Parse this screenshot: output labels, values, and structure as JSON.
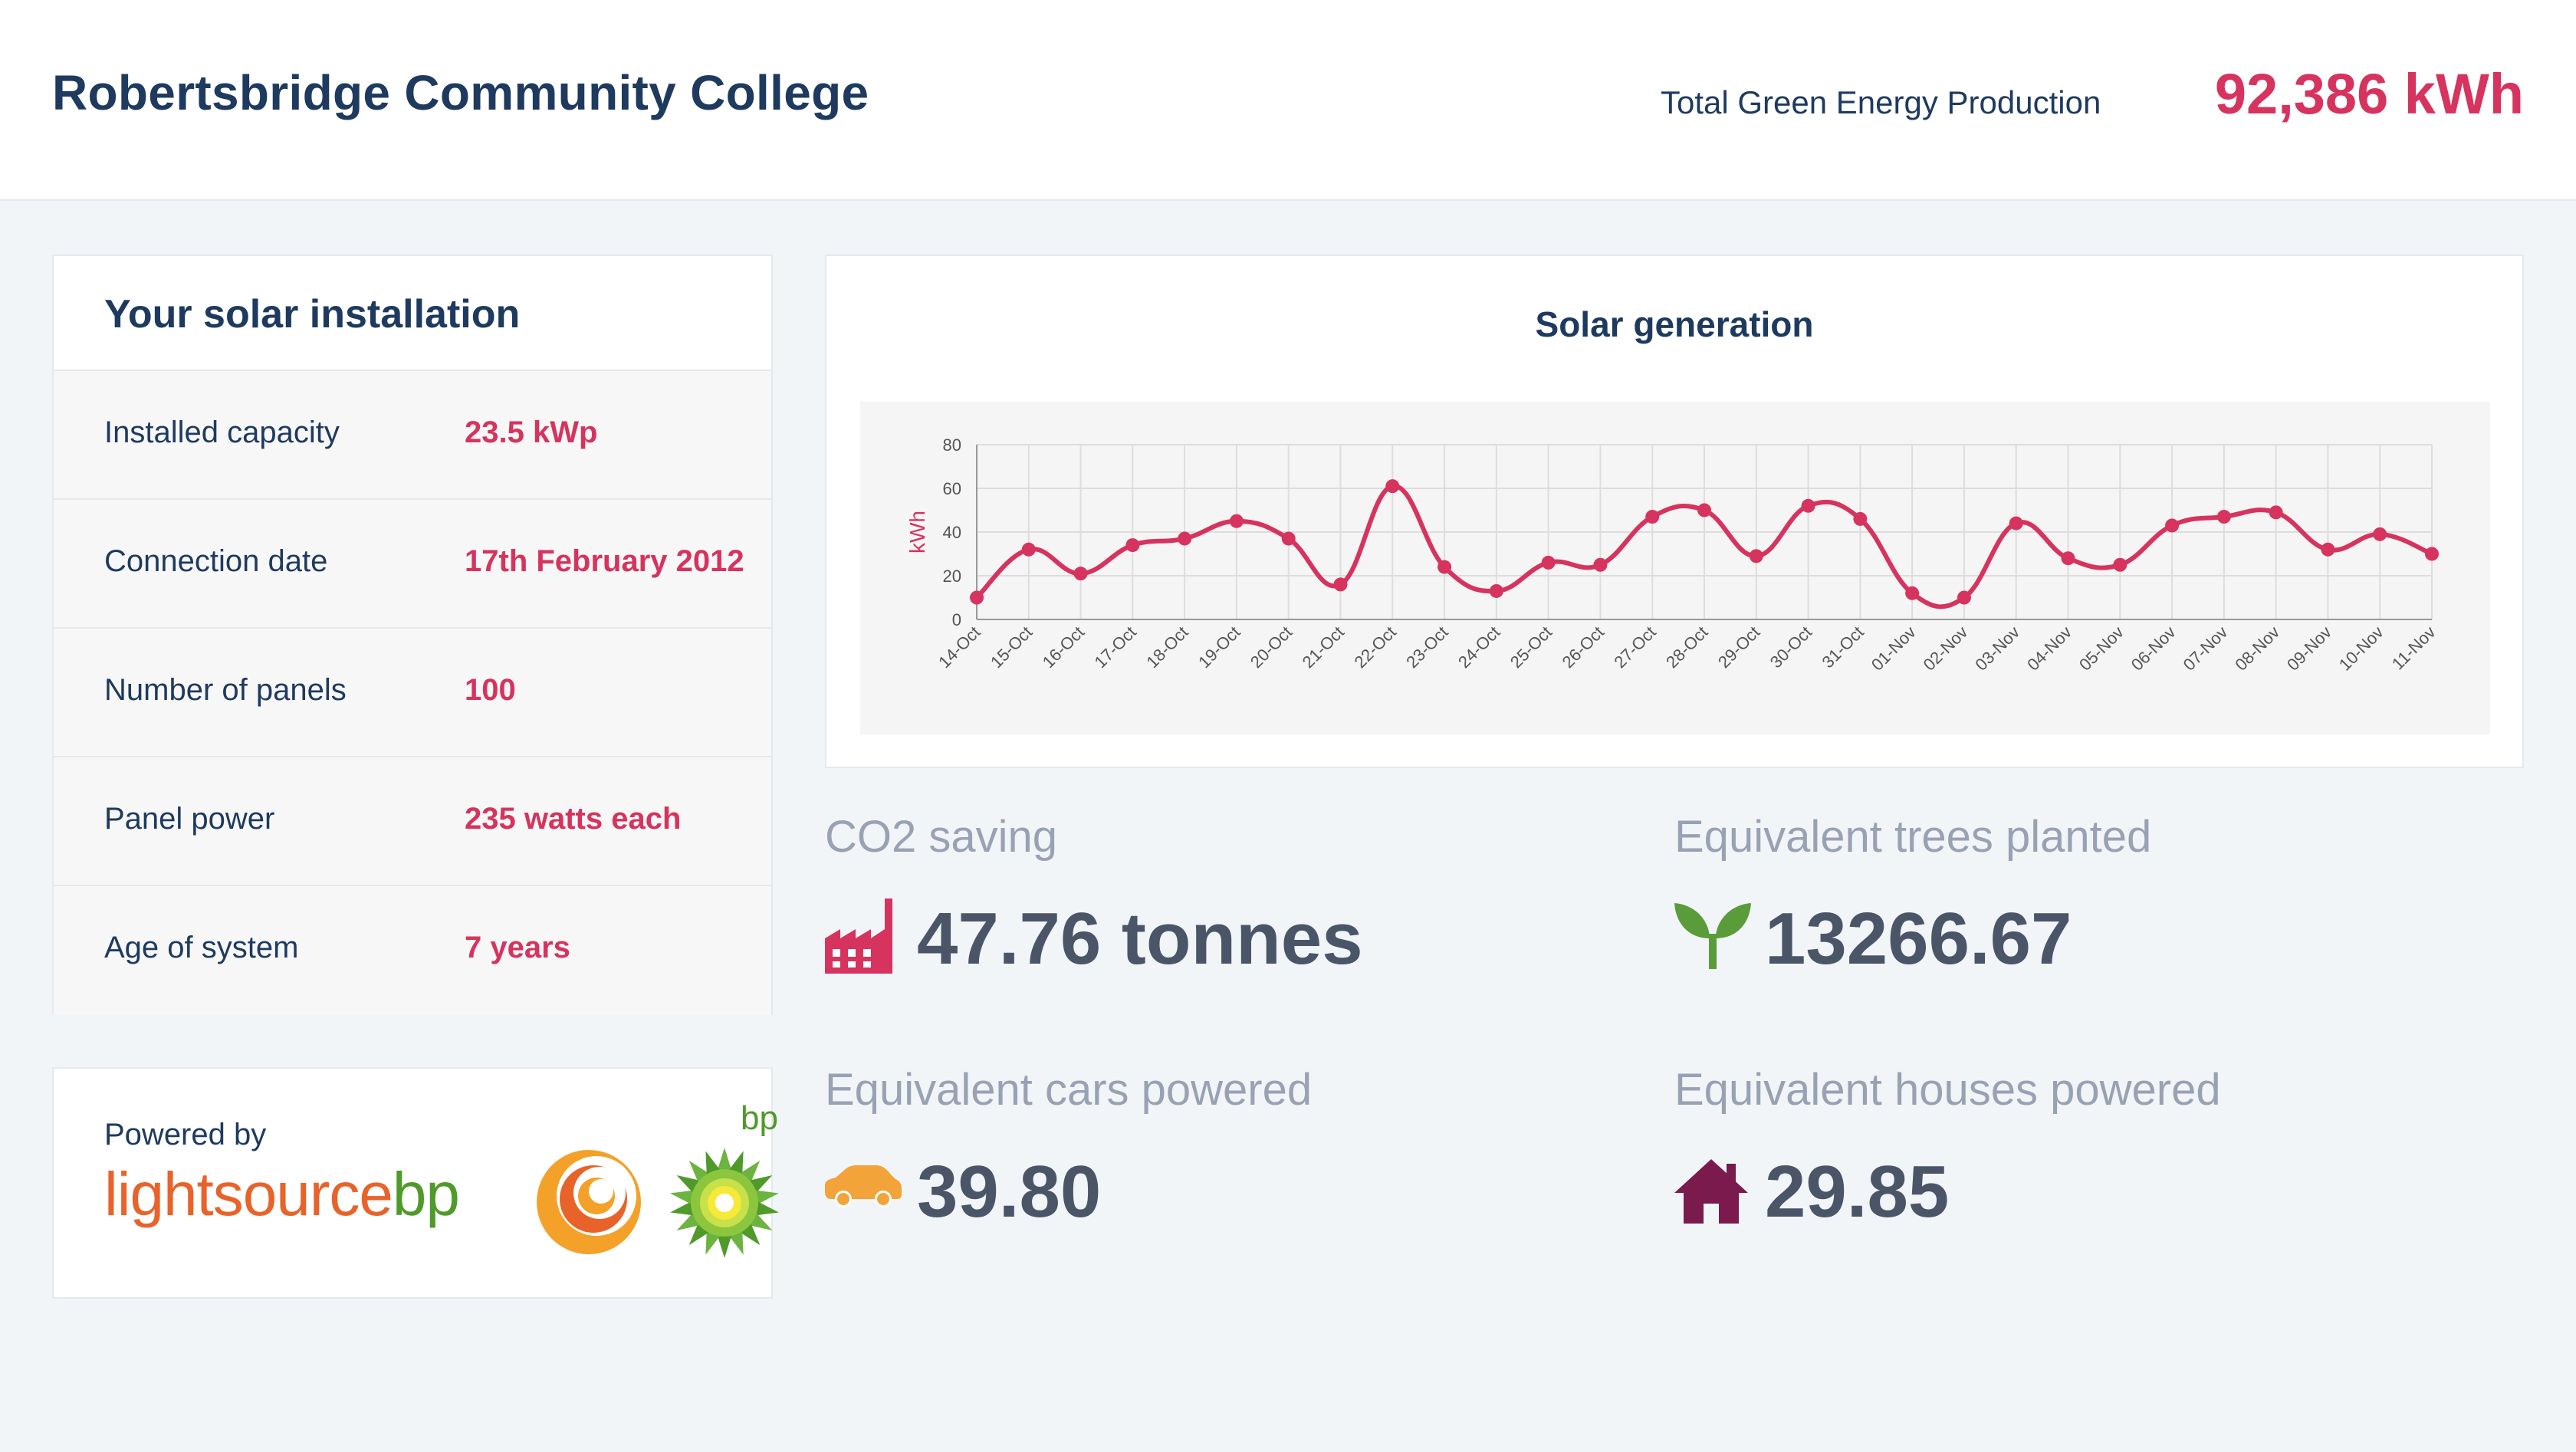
{
  "header": {
    "title": "Robertsbridge Community College",
    "total_label": "Total Green Energy Production",
    "total_value": "92,386 kWh"
  },
  "installation": {
    "title": "Your solar installation",
    "rows": [
      {
        "label": "Installed capacity",
        "value": "23.5 kWp"
      },
      {
        "label": "Connection date",
        "value": "17th February 2012"
      },
      {
        "label": "Number of panels",
        "value": "100"
      },
      {
        "label": "Panel power",
        "value": "235 watts each"
      },
      {
        "label": "Age of system",
        "value": "7 years"
      }
    ]
  },
  "powered": {
    "label": "Powered by",
    "brand_main": "lightsource",
    "brand_suffix": "bp",
    "bp_mark": "bp"
  },
  "chart_title": "Solar generation",
  "chart_data": {
    "type": "line",
    "title": "Solar generation",
    "xlabel": "",
    "ylabel": "kWh",
    "ylim": [
      0,
      80
    ],
    "yticks": [
      0,
      20,
      40,
      60,
      80
    ],
    "grid": true,
    "color": "#d6335e",
    "categories": [
      "14-Oct",
      "15-Oct",
      "16-Oct",
      "17-Oct",
      "18-Oct",
      "19-Oct",
      "20-Oct",
      "21-Oct",
      "22-Oct",
      "23-Oct",
      "24-Oct",
      "25-Oct",
      "26-Oct",
      "27-Oct",
      "28-Oct",
      "29-Oct",
      "30-Oct",
      "31-Oct",
      "01-Nov",
      "02-Nov",
      "03-Nov",
      "04-Nov",
      "05-Nov",
      "06-Nov",
      "07-Nov",
      "08-Nov",
      "09-Nov",
      "10-Nov",
      "11-Nov"
    ],
    "values": [
      10,
      32,
      21,
      34,
      37,
      45,
      37,
      16,
      61,
      24,
      13,
      26,
      25,
      47,
      50,
      29,
      52,
      46,
      12,
      10,
      44,
      28,
      25,
      43,
      47,
      49,
      32,
      39,
      30
    ]
  },
  "stats": [
    {
      "label": "CO2 saving",
      "value": "47.76 tonnes",
      "icon": "factory-icon",
      "color": "#d6335e"
    },
    {
      "label": "Equivalent trees planted",
      "value": "13266.67",
      "icon": "sprout-icon",
      "color": "#5a9b3a"
    },
    {
      "label": "Equivalent cars powered",
      "value": "39.80",
      "icon": "car-icon",
      "color": "#f2a33a"
    },
    {
      "label": "Equivalent houses powered",
      "value": "29.85",
      "icon": "house-icon",
      "color": "#7a1a4d"
    }
  ]
}
